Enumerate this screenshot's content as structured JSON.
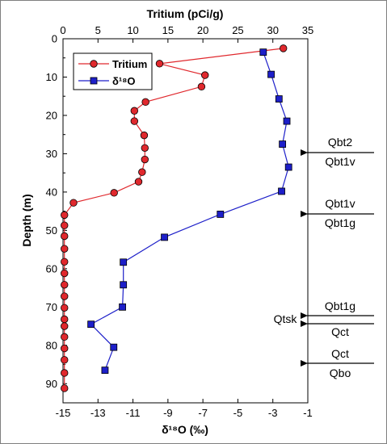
{
  "chart_data": {
    "type": "scatter",
    "x_top_title": "Tritium (pCi/g)",
    "x_top_ticks": [
      "0",
      "5",
      "10",
      "15",
      "20",
      "25",
      "30",
      "35"
    ],
    "x_top_lim": [
      0,
      35
    ],
    "x_bottom_title": "δ¹⁸O (‰)",
    "x_bottom_ticks": [
      "-15",
      "-13",
      "-11",
      "-9",
      "-7",
      "-5",
      "-3",
      "-1"
    ],
    "x_bottom_lim": [
      -15,
      -1
    ],
    "y_title": "Depth (m)",
    "y_ticks": [
      "0",
      "10",
      "20",
      "30",
      "40",
      "50",
      "60",
      "70",
      "80",
      "90"
    ],
    "y_lim": [
      0,
      95
    ],
    "y_reversed": true,
    "grid": false,
    "legend_position": "top-left",
    "series": [
      {
        "name": "Tritium",
        "axis": "top",
        "color": "#e0282d",
        "marker": "circle",
        "points": [
          [
            31.5,
            2.5
          ],
          [
            13.8,
            6.5
          ],
          [
            20.3,
            9.5
          ],
          [
            19.8,
            12.5
          ],
          [
            11.8,
            16.5
          ],
          [
            10.2,
            18.8
          ],
          [
            10.2,
            21.5
          ],
          [
            11.6,
            25.2
          ],
          [
            11.7,
            28.5
          ],
          [
            11.7,
            31.5
          ],
          [
            11.3,
            34.8
          ],
          [
            10.8,
            37.3
          ],
          [
            7.3,
            40.2
          ],
          [
            1.5,
            42.8
          ],
          [
            0.2,
            46
          ],
          [
            0.2,
            48.7
          ],
          [
            0.2,
            51.5
          ],
          [
            0.2,
            54.8
          ],
          [
            0.2,
            58.2
          ],
          [
            0.2,
            61.2
          ],
          [
            0.2,
            64.2
          ],
          [
            0.2,
            67.2
          ],
          [
            0.2,
            70.2
          ],
          [
            0.2,
            73.2
          ],
          [
            0.2,
            75
          ],
          [
            0.2,
            77.8
          ],
          [
            0.2,
            80.8
          ],
          [
            0.2,
            83.8
          ],
          [
            0.2,
            87.2
          ],
          [
            0.2,
            91.2
          ]
        ]
      },
      {
        "name": "δ¹⁸O",
        "axis": "bottom",
        "color": "#1d1fc9",
        "marker": "square",
        "points": [
          [
            -3.55,
            3.5
          ],
          [
            -3.1,
            9.3
          ],
          [
            -2.65,
            15.7
          ],
          [
            -2.2,
            21.5
          ],
          [
            -2.45,
            27.5
          ],
          [
            -2.1,
            33.5
          ],
          [
            -2.5,
            39.8
          ],
          [
            -6,
            45.8
          ],
          [
            -9.2,
            51.8
          ],
          [
            -11.55,
            58.3
          ],
          [
            -11.55,
            64.2
          ],
          [
            -11.6,
            70
          ],
          [
            -13.4,
            74.5
          ],
          [
            -12.1,
            80.5
          ],
          [
            -12.6,
            86.5
          ]
        ]
      }
    ],
    "annotations": [
      {
        "upper": "Qbt2",
        "lower": "Qbt1v",
        "depth": 29
      },
      {
        "upper": "Qbt1v",
        "lower": "Qbt1g",
        "depth": 46
      },
      {
        "upper": "Qbt1g",
        "lower": "",
        "depth": 73.5
      },
      {
        "upper": "",
        "lower": "Qct",
        "depth": 75.5
      },
      {
        "upper": "Qct",
        "lower": "Qbo",
        "depth": 86.5
      }
    ],
    "side_label": {
      "text": "Qtsk",
      "depth": 74.5
    }
  }
}
